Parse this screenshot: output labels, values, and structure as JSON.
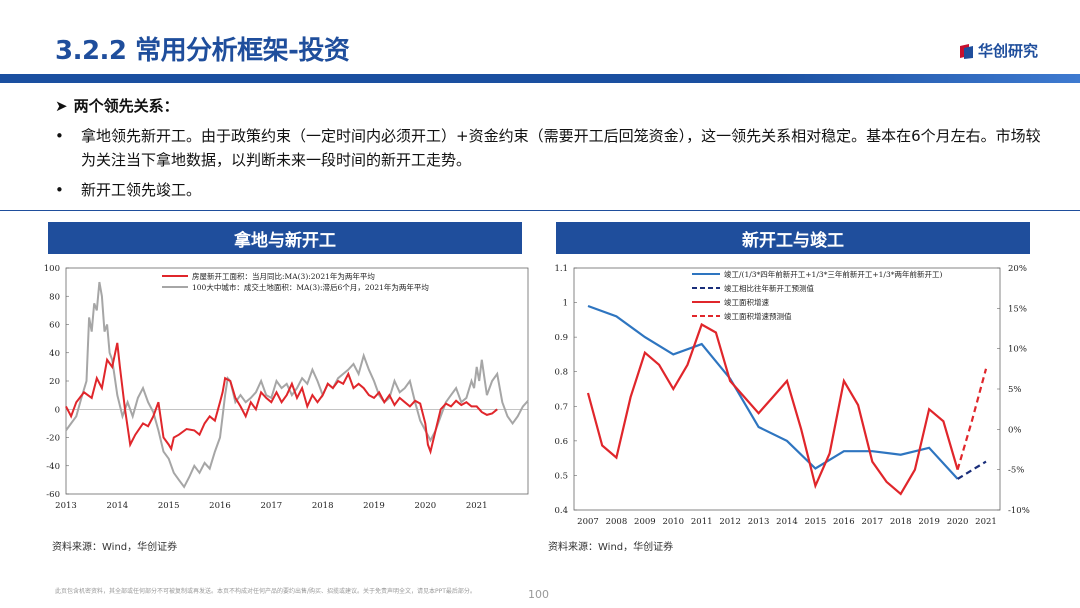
{
  "header": {
    "title": "3.2.2 常用分析框架-投资",
    "logo_text": "华创研究",
    "brand_color": "#1f4e9c"
  },
  "bullets": {
    "head_marker": "➤",
    "head": "两个领先关系：",
    "item_marker": "•",
    "items": [
      "拿地领先新开工。由于政策约束（一定时间内必须开工）+资金约束（需要开工后回笼资金），这一领先关系相对稳定。基本在6个月左右。市场较为关注当下拿地数据，以判断未来一段时间的新开工走势。",
      "新开工领先竣工。"
    ]
  },
  "left_panel": {
    "title": "拿地与新开工",
    "source": "资料来源：Wind，华创证券"
  },
  "right_panel": {
    "title": "新开工与竣工",
    "source": "资料来源：Wind，华创证券"
  },
  "footer": {
    "disclaimer": "此页包含机密资料，其全部或任何部分不可被复制或再发送。本页不构成对任何产品的要约出售/购买、招揽或建议。关于免责声明全文，请见本PPT最后部分。",
    "page_number": "100"
  },
  "chart_data": [
    {
      "type": "line",
      "ylim": [
        -60,
        100
      ],
      "yticks": [
        100,
        80,
        60,
        40,
        20,
        0,
        -20,
        -40,
        -60
      ],
      "xlim": [
        2013,
        2022
      ],
      "xticks": [
        "2013",
        "2014",
        "2015",
        "2016",
        "2017",
        "2018",
        "2019",
        "2020",
        "2021"
      ],
      "series": [
        {
          "name": "房屋新开工面积：当月同比:MA(3):2021年为两年平均",
          "color": "#e0262b",
          "points": [
            [
              2013.0,
              2
            ],
            [
              2013.1,
              -5
            ],
            [
              2013.2,
              5
            ],
            [
              2013.35,
              12
            ],
            [
              2013.5,
              8
            ],
            [
              2013.6,
              22
            ],
            [
              2013.7,
              15
            ],
            [
              2013.8,
              35
            ],
            [
              2013.9,
              30
            ],
            [
              2014.0,
              47
            ],
            [
              2014.05,
              30
            ],
            [
              2014.15,
              0
            ],
            [
              2014.25,
              -25
            ],
            [
              2014.35,
              -18
            ],
            [
              2014.5,
              -10
            ],
            [
              2014.6,
              -12
            ],
            [
              2014.7,
              -5
            ],
            [
              2014.8,
              5
            ],
            [
              2014.9,
              -20
            ],
            [
              2015.0,
              -25
            ],
            [
              2015.05,
              -28
            ],
            [
              2015.1,
              -20
            ],
            [
              2015.2,
              -18
            ],
            [
              2015.35,
              -14
            ],
            [
              2015.5,
              -15
            ],
            [
              2015.6,
              -18
            ],
            [
              2015.7,
              -10
            ],
            [
              2015.8,
              -5
            ],
            [
              2015.9,
              -8
            ],
            [
              2016.0,
              5
            ],
            [
              2016.05,
              12
            ],
            [
              2016.1,
              22
            ],
            [
              2016.2,
              20
            ],
            [
              2016.3,
              8
            ],
            [
              2016.4,
              2
            ],
            [
              2016.5,
              -5
            ],
            [
              2016.6,
              5
            ],
            [
              2016.7,
              0
            ],
            [
              2016.8,
              12
            ],
            [
              2016.9,
              8
            ],
            [
              2017.0,
              5
            ],
            [
              2017.1,
              12
            ],
            [
              2017.2,
              5
            ],
            [
              2017.3,
              10
            ],
            [
              2017.4,
              18
            ],
            [
              2017.5,
              8
            ],
            [
              2017.6,
              15
            ],
            [
              2017.7,
              2
            ],
            [
              2017.8,
              10
            ],
            [
              2017.9,
              5
            ],
            [
              2018.0,
              10
            ],
            [
              2018.1,
              18
            ],
            [
              2018.2,
              15
            ],
            [
              2018.3,
              20
            ],
            [
              2018.4,
              18
            ],
            [
              2018.5,
              25
            ],
            [
              2018.6,
              15
            ],
            [
              2018.7,
              18
            ],
            [
              2018.8,
              15
            ],
            [
              2018.9,
              10
            ],
            [
              2019.0,
              8
            ],
            [
              2019.1,
              12
            ],
            [
              2019.2,
              5
            ],
            [
              2019.3,
              10
            ],
            [
              2019.4,
              3
            ],
            [
              2019.5,
              8
            ],
            [
              2019.6,
              5
            ],
            [
              2019.7,
              2
            ],
            [
              2019.8,
              6
            ],
            [
              2019.9,
              4
            ],
            [
              2020.0,
              -10
            ],
            [
              2020.05,
              -25
            ],
            [
              2020.1,
              -30
            ],
            [
              2020.2,
              -15
            ],
            [
              2020.3,
              0
            ],
            [
              2020.4,
              4
            ],
            [
              2020.5,
              2
            ],
            [
              2020.6,
              6
            ],
            [
              2020.7,
              3
            ],
            [
              2020.8,
              5
            ],
            [
              2020.9,
              2
            ],
            [
              2021.0,
              2
            ],
            [
              2021.1,
              -2
            ],
            [
              2021.2,
              -4
            ],
            [
              2021.3,
              -3
            ],
            [
              2021.4,
              0
            ]
          ]
        },
        {
          "name": "100大中城市：成交土地面积：MA(3):滞后6个月，2021年为两年平均",
          "color": "#a6a6a6",
          "points": [
            [
              2013.0,
              -15
            ],
            [
              2013.1,
              -10
            ],
            [
              2013.2,
              -5
            ],
            [
              2013.3,
              8
            ],
            [
              2013.4,
              20
            ],
            [
              2013.45,
              65
            ],
            [
              2013.5,
              55
            ],
            [
              2013.55,
              75
            ],
            [
              2013.6,
              70
            ],
            [
              2013.65,
              90
            ],
            [
              2013.7,
              80
            ],
            [
              2013.75,
              55
            ],
            [
              2013.8,
              60
            ],
            [
              2013.85,
              40
            ],
            [
              2013.9,
              35
            ],
            [
              2014.0,
              10
            ],
            [
              2014.1,
              -5
            ],
            [
              2014.2,
              5
            ],
            [
              2014.3,
              -5
            ],
            [
              2014.4,
              8
            ],
            [
              2014.5,
              15
            ],
            [
              2014.6,
              5
            ],
            [
              2014.7,
              -2
            ],
            [
              2014.8,
              -15
            ],
            [
              2014.9,
              -30
            ],
            [
              2015.0,
              -35
            ],
            [
              2015.1,
              -45
            ],
            [
              2015.2,
              -50
            ],
            [
              2015.3,
              -55
            ],
            [
              2015.4,
              -48
            ],
            [
              2015.5,
              -40
            ],
            [
              2015.6,
              -45
            ],
            [
              2015.7,
              -38
            ],
            [
              2015.8,
              -42
            ],
            [
              2015.9,
              -30
            ],
            [
              2016.0,
              -20
            ],
            [
              2016.05,
              -5
            ],
            [
              2016.1,
              10
            ],
            [
              2016.15,
              22
            ],
            [
              2016.2,
              20
            ],
            [
              2016.3,
              5
            ],
            [
              2016.4,
              10
            ],
            [
              2016.5,
              5
            ],
            [
              2016.6,
              8
            ],
            [
              2016.7,
              12
            ],
            [
              2016.8,
              20
            ],
            [
              2016.9,
              10
            ],
            [
              2017.0,
              8
            ],
            [
              2017.1,
              20
            ],
            [
              2017.2,
              15
            ],
            [
              2017.3,
              18
            ],
            [
              2017.4,
              10
            ],
            [
              2017.5,
              15
            ],
            [
              2017.6,
              22
            ],
            [
              2017.7,
              18
            ],
            [
              2017.8,
              28
            ],
            [
              2017.9,
              20
            ],
            [
              2018.0,
              10
            ],
            [
              2018.1,
              18
            ],
            [
              2018.2,
              15
            ],
            [
              2018.3,
              22
            ],
            [
              2018.4,
              25
            ],
            [
              2018.5,
              28
            ],
            [
              2018.6,
              32
            ],
            [
              2018.7,
              25
            ],
            [
              2018.8,
              38
            ],
            [
              2018.9,
              28
            ],
            [
              2019.0,
              20
            ],
            [
              2019.1,
              10
            ],
            [
              2019.2,
              5
            ],
            [
              2019.3,
              8
            ],
            [
              2019.4,
              20
            ],
            [
              2019.5,
              12
            ],
            [
              2019.6,
              15
            ],
            [
              2019.7,
              20
            ],
            [
              2019.8,
              5
            ],
            [
              2019.9,
              -8
            ],
            [
              2020.0,
              -15
            ],
            [
              2020.1,
              -22
            ],
            [
              2020.2,
              -15
            ],
            [
              2020.3,
              -5
            ],
            [
              2020.4,
              5
            ],
            [
              2020.5,
              10
            ],
            [
              2020.6,
              15
            ],
            [
              2020.7,
              5
            ],
            [
              2020.8,
              8
            ],
            [
              2020.9,
              20
            ],
            [
              2020.95,
              15
            ],
            [
              2021.0,
              30
            ],
            [
              2021.05,
              20
            ],
            [
              2021.1,
              35
            ],
            [
              2021.2,
              10
            ],
            [
              2021.3,
              20
            ],
            [
              2021.4,
              25
            ],
            [
              2021.5,
              5
            ],
            [
              2021.6,
              -5
            ],
            [
              2021.7,
              -10
            ],
            [
              2021.8,
              -5
            ],
            [
              2021.9,
              2
            ],
            [
              2022.0,
              6
            ]
          ]
        }
      ]
    },
    {
      "type": "line",
      "ylim_left": [
        0.4,
        1.1
      ],
      "yticks_left": [
        "1.1",
        "1",
        "0.9",
        "0.8",
        "0.7",
        "0.6",
        "0.5",
        "0.4"
      ],
      "ylim_right": [
        -10,
        20
      ],
      "yticks_right": [
        "20%",
        "15%",
        "10%",
        "5%",
        "0%",
        "-5%",
        "-10%"
      ],
      "xlim": [
        2007,
        2021
      ],
      "xticks": [
        "2007",
        "2008",
        "2009",
        "2010",
        "2011",
        "2012",
        "2013",
        "2014",
        "2015",
        "2016",
        "2017",
        "2018",
        "2019",
        "2020",
        "2021"
      ],
      "series": [
        {
          "name": "竣工/(1/3*四年前新开工+1/3*三年前新开工+1/3*两年前新开工)",
          "color": "#2e75c0",
          "axis": "left",
          "dash": false,
          "points": [
            [
              2007,
              0.99
            ],
            [
              2008,
              0.96
            ],
            [
              2009,
              0.9
            ],
            [
              2010,
              0.85
            ],
            [
              2011,
              0.88
            ],
            [
              2012,
              0.78
            ],
            [
              2013,
              0.64
            ],
            [
              2014,
              0.6
            ],
            [
              2015,
              0.52
            ],
            [
              2016,
              0.57
            ],
            [
              2017,
              0.57
            ],
            [
              2018,
              0.56
            ],
            [
              2019,
              0.58
            ],
            [
              2020,
              0.49
            ]
          ]
        },
        {
          "name": "竣工相比往年新开工预测值",
          "color": "#1a2e7a",
          "axis": "left",
          "dash": true,
          "points": [
            [
              2020,
              0.49
            ],
            [
              2021,
              0.54
            ]
          ]
        },
        {
          "name": "竣工面积增速",
          "color": "#e0262b",
          "axis": "right",
          "dash": false,
          "points": [
            [
              2007,
              4.5
            ],
            [
              2007.5,
              -2
            ],
            [
              2008,
              -3.5
            ],
            [
              2008.5,
              4
            ],
            [
              2009,
              9.5
            ],
            [
              2009.5,
              8
            ],
            [
              2010,
              5
            ],
            [
              2010.5,
              8
            ],
            [
              2011,
              13
            ],
            [
              2011.5,
              12
            ],
            [
              2012,
              6
            ],
            [
              2012.5,
              4
            ],
            [
              2013,
              2
            ],
            [
              2013.5,
              4
            ],
            [
              2014,
              6
            ],
            [
              2014.5,
              0
            ],
            [
              2015,
              -7
            ],
            [
              2015.5,
              -3
            ],
            [
              2016,
              6
            ],
            [
              2016.5,
              3
            ],
            [
              2017,
              -4
            ],
            [
              2017.5,
              -6.5
            ],
            [
              2018,
              -8
            ],
            [
              2018.5,
              -5
            ],
            [
              2019,
              2.5
            ],
            [
              2019.5,
              1
            ],
            [
              2020,
              -5
            ]
          ]
        },
        {
          "name": "竣工面积增速预测值",
          "color": "#e0262b",
          "axis": "right",
          "dash": true,
          "points": [
            [
              2020,
              -5
            ],
            [
              2020.5,
              1
            ],
            [
              2021,
              7.5
            ]
          ]
        }
      ]
    }
  ]
}
